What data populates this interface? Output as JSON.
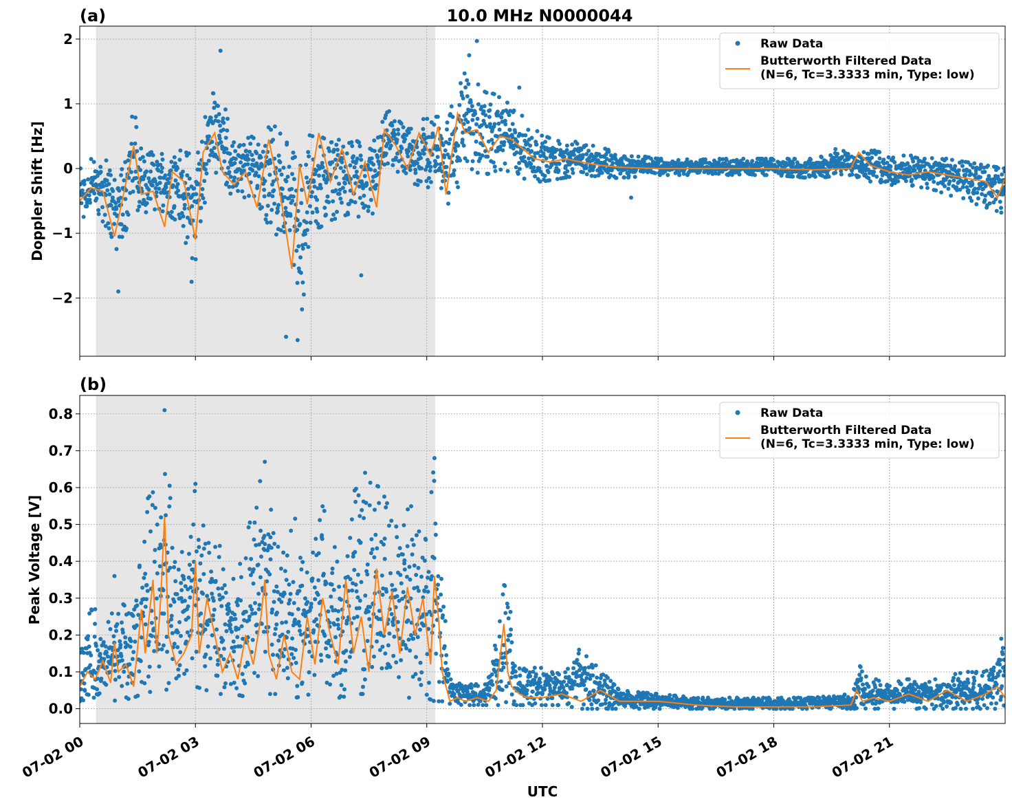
{
  "chart_data": [
    {
      "type": "scatter",
      "panel_label": "(a)",
      "title": "10.0 MHz N0000044",
      "xlabel": "",
      "ylabel": "Doppler Shift [Hz]",
      "xlim": [
        "2024-07-02T00:00",
        "2024-07-02T24:00"
      ],
      "ylim": [
        -2.9,
        2.2
      ],
      "yticks": [
        -2,
        -1,
        0,
        1,
        2
      ],
      "ytick_labels": [
        "−2",
        "−1",
        "0",
        "1",
        "2"
      ],
      "grid": true,
      "legend": "top-right",
      "shaded_region": {
        "start_hour": 0.42,
        "end_hour": 9.22,
        "color": "#e6e6e6"
      },
      "series": [
        {
          "name": "Raw Data",
          "kind": "scatter",
          "color": "#1f77b4",
          "band_hours": [
            0,
            0.5,
            1,
            1.4,
            1.7,
            2,
            2.5,
            3,
            3.3,
            3.6,
            4,
            4.5,
            5,
            5.5,
            5.7,
            6,
            6.5,
            7,
            7.5,
            8,
            8.5,
            9,
            9.3,
            9.6,
            10,
            10.5,
            11,
            11.5,
            12,
            13,
            14,
            15,
            16,
            17,
            18,
            19,
            20,
            20.5,
            21,
            22,
            23,
            24
          ],
          "band_low": [
            -0.9,
            -0.7,
            -1.3,
            -0.6,
            -0.8,
            -0.6,
            -0.8,
            -1.5,
            -0.3,
            0.0,
            -0.5,
            -0.4,
            -1.0,
            -1.1,
            -2.5,
            -1.0,
            -0.8,
            -0.7,
            -0.9,
            0.1,
            -0.2,
            -0.3,
            -0.2,
            -0.6,
            0.0,
            -0.1,
            0.0,
            -0.2,
            -0.2,
            -0.1,
            -0.15,
            -0.1,
            -0.1,
            -0.1,
            -0.1,
            -0.15,
            -0.1,
            -0.2,
            -0.25,
            -0.3,
            -0.5,
            -0.7
          ],
          "band_high": [
            0.1,
            0.2,
            0.0,
            0.9,
            0.2,
            0.3,
            0.3,
            0.2,
            0.9,
            1.4,
            0.4,
            0.5,
            0.7,
            0.3,
            0.0,
            0.6,
            0.4,
            0.5,
            0.3,
            0.9,
            0.6,
            0.8,
            0.8,
            0.9,
            1.5,
            1.2,
            1.1,
            0.8,
            0.5,
            0.4,
            0.25,
            0.15,
            0.15,
            0.15,
            0.15,
            0.15,
            0.3,
            0.3,
            0.2,
            0.2,
            0.1,
            0.0
          ],
          "outliers": [
            {
              "x_hour": 3.65,
              "y": 1.82
            },
            {
              "x_hour": 5.65,
              "y": -2.65
            },
            {
              "x_hour": 5.35,
              "y": -2.6
            },
            {
              "x_hour": 10.3,
              "y": 1.97
            },
            {
              "x_hour": 10.1,
              "y": 1.75
            },
            {
              "x_hour": 1.0,
              "y": -1.9
            },
            {
              "x_hour": 2.9,
              "y": -1.75
            },
            {
              "x_hour": 7.3,
              "y": -1.65
            },
            {
              "x_hour": 11.4,
              "y": 1.25
            },
            {
              "x_hour": 14.3,
              "y": -0.45
            },
            {
              "x_hour": 19.6,
              "y": 0.3
            }
          ]
        },
        {
          "name": "Butterworth Filtered Data\n(N=6, Tc=3.3333 min, Type: low)",
          "kind": "line",
          "color": "#ff7f0e",
          "x_hour": [
            0,
            0.3,
            0.6,
            0.9,
            1.1,
            1.4,
            1.6,
            1.9,
            2.2,
            2.4,
            2.7,
            3.0,
            3.2,
            3.5,
            3.7,
            4.0,
            4.3,
            4.6,
            4.9,
            5.2,
            5.5,
            5.7,
            5.9,
            6.2,
            6.5,
            6.8,
            7.1,
            7.4,
            7.7,
            7.9,
            8.2,
            8.5,
            8.8,
            9.1,
            9.3,
            9.5,
            9.8,
            10.0,
            10.3,
            10.6,
            10.9,
            11.2,
            11.5,
            11.8,
            12.2,
            12.6,
            13.0,
            13.5,
            14.0,
            15.0,
            16.0,
            17.0,
            18.0,
            19.0,
            20.0,
            20.2,
            20.5,
            21.0,
            21.5,
            22.0,
            22.5,
            23.0,
            23.5,
            23.8,
            24.0
          ],
          "y": [
            -0.5,
            -0.3,
            -0.35,
            -1.05,
            -0.5,
            0.35,
            -0.4,
            -0.35,
            -0.9,
            -0.05,
            -0.2,
            -1.1,
            0.25,
            0.55,
            -0.05,
            -0.25,
            -0.05,
            -0.6,
            0.45,
            -0.4,
            -1.55,
            0.05,
            -0.55,
            0.55,
            -0.2,
            0.3,
            -0.4,
            0.1,
            -0.6,
            0.6,
            0.35,
            0.0,
            0.55,
            0.2,
            0.65,
            -0.4,
            0.85,
            0.55,
            0.6,
            0.25,
            0.5,
            0.45,
            0.3,
            0.15,
            0.1,
            0.15,
            0.1,
            0.05,
            0.02,
            0.0,
            0.0,
            0.0,
            0.0,
            -0.02,
            0.0,
            0.25,
            0.05,
            -0.05,
            -0.1,
            -0.05,
            -0.1,
            -0.15,
            -0.2,
            -0.45,
            -0.15
          ]
        }
      ]
    },
    {
      "type": "scatter",
      "panel_label": "(b)",
      "title": "",
      "xlabel": "UTC",
      "ylabel": "Peak Voltage [V]",
      "xlim": [
        "2024-07-02T00:00",
        "2024-07-02T24:00"
      ],
      "ylim": [
        -0.04,
        0.85
      ],
      "yticks": [
        0.0,
        0.1,
        0.2,
        0.3,
        0.4,
        0.5,
        0.6,
        0.7,
        0.8
      ],
      "ytick_labels": [
        "0.0",
        "0.1",
        "0.2",
        "0.3",
        "0.4",
        "0.5",
        "0.6",
        "0.7",
        "0.8"
      ],
      "xticks_hour": [
        0,
        3,
        6,
        9,
        12,
        15,
        18,
        21
      ],
      "xtick_labels": [
        "07-02 00",
        "07-02 03",
        "07-02 06",
        "07-02 09",
        "07-02 12",
        "07-02 15",
        "07-02 18",
        "07-02 21"
      ],
      "grid": true,
      "legend": "top-right",
      "shaded_region": {
        "start_hour": 0.42,
        "end_hour": 9.22,
        "color": "#e6e6e6"
      },
      "series": [
        {
          "name": "Raw Data",
          "kind": "scatter",
          "color": "#1f77b4",
          "band_hours": [
            0,
            0.3,
            0.6,
            1.0,
            1.4,
            1.6,
            2.0,
            2.2,
            2.5,
            3.0,
            3.3,
            3.6,
            4.0,
            4.4,
            4.8,
            5.2,
            5.6,
            6.0,
            6.3,
            6.8,
            7.0,
            7.4,
            7.8,
            8.2,
            8.6,
            9.0,
            9.2,
            9.4,
            9.6,
            10.0,
            10.5,
            10.9,
            11.1,
            11.3,
            12.0,
            12.5,
            13.0,
            14.0,
            15.0,
            16.0,
            17.0,
            18.0,
            19.0,
            20.0,
            20.2,
            20.5,
            21.0,
            22.0,
            23.0,
            23.5,
            24.0
          ],
          "band_low": [
            0.02,
            0.03,
            0.03,
            0.02,
            0.03,
            0.04,
            0.05,
            0.05,
            0.06,
            0.06,
            0.05,
            0.04,
            0.04,
            0.03,
            0.04,
            0.04,
            0.03,
            0.04,
            0.03,
            0.03,
            0.04,
            0.04,
            0.03,
            0.03,
            0.03,
            0.03,
            0.02,
            0.02,
            0.01,
            0.01,
            0.01,
            0.01,
            0.02,
            0.01,
            0.01,
            0.01,
            0.0,
            0.0,
            0.0,
            0.0,
            0.0,
            0.0,
            0.0,
            0.0,
            0.0,
            0.0,
            0.0,
            0.0,
            0.0,
            0.0,
            0.0
          ],
          "band_high": [
            0.2,
            0.27,
            0.2,
            0.3,
            0.25,
            0.55,
            0.6,
            0.8,
            0.35,
            0.6,
            0.45,
            0.45,
            0.35,
            0.5,
            0.67,
            0.4,
            0.52,
            0.4,
            0.55,
            0.4,
            0.58,
            0.62,
            0.6,
            0.5,
            0.58,
            0.45,
            0.68,
            0.35,
            0.08,
            0.08,
            0.06,
            0.25,
            0.41,
            0.12,
            0.11,
            0.1,
            0.16,
            0.05,
            0.04,
            0.03,
            0.03,
            0.03,
            0.03,
            0.04,
            0.12,
            0.08,
            0.08,
            0.08,
            0.1,
            0.1,
            0.19
          ],
          "outliers": [
            {
              "x_hour": 2.2,
              "y": 0.81
            },
            {
              "x_hour": 4.8,
              "y": 0.67
            },
            {
              "x_hour": 9.2,
              "y": 0.68
            },
            {
              "x_hour": 7.4,
              "y": 0.64
            },
            {
              "x_hour": 3.0,
              "y": 0.61
            },
            {
              "x_hour": 0.4,
              "y": 0.27
            },
            {
              "x_hour": 0.9,
              "y": 0.36
            },
            {
              "x_hour": 12.95,
              "y": 0.16
            },
            {
              "x_hour": 23.9,
              "y": 0.19
            }
          ]
        },
        {
          "name": "Butterworth Filtered Data\n(N=6, Tc=3.3333 min, Type: low)",
          "kind": "line",
          "color": "#ff7f0e",
          "x_hour": [
            0,
            0.2,
            0.4,
            0.6,
            0.8,
            0.9,
            1.0,
            1.2,
            1.4,
            1.6,
            1.7,
            1.9,
            2.0,
            2.1,
            2.2,
            2.3,
            2.5,
            2.7,
            2.9,
            3.0,
            3.1,
            3.3,
            3.5,
            3.7,
            3.9,
            4.1,
            4.3,
            4.5,
            4.7,
            4.8,
            4.9,
            5.1,
            5.3,
            5.5,
            5.7,
            5.9,
            6.1,
            6.3,
            6.5,
            6.7,
            6.9,
            7.1,
            7.3,
            7.5,
            7.7,
            7.9,
            8.1,
            8.3,
            8.5,
            8.7,
            8.9,
            9.1,
            9.2,
            9.3,
            9.4,
            9.6,
            9.8,
            10.0,
            10.3,
            10.6,
            10.8,
            11.0,
            11.1,
            11.2,
            11.4,
            11.6,
            12.0,
            12.5,
            13.0,
            13.5,
            14.0,
            15.0,
            16.0,
            17.0,
            18.0,
            19.0,
            20.0,
            20.15,
            20.3,
            20.6,
            21.0,
            21.5,
            22.0,
            22.5,
            23.0,
            23.5,
            23.8,
            24.0
          ],
          "y": [
            0.06,
            0.1,
            0.08,
            0.13,
            0.07,
            0.18,
            0.1,
            0.12,
            0.06,
            0.27,
            0.15,
            0.35,
            0.15,
            0.3,
            0.52,
            0.2,
            0.12,
            0.15,
            0.2,
            0.4,
            0.15,
            0.3,
            0.2,
            0.1,
            0.15,
            0.08,
            0.2,
            0.12,
            0.25,
            0.35,
            0.15,
            0.08,
            0.2,
            0.1,
            0.08,
            0.25,
            0.12,
            0.3,
            0.2,
            0.12,
            0.35,
            0.15,
            0.25,
            0.1,
            0.38,
            0.2,
            0.32,
            0.15,
            0.33,
            0.2,
            0.3,
            0.12,
            0.36,
            0.25,
            0.1,
            0.02,
            0.03,
            0.02,
            0.03,
            0.02,
            0.05,
            0.23,
            0.1,
            0.06,
            0.04,
            0.03,
            0.03,
            0.04,
            0.02,
            0.05,
            0.02,
            0.02,
            0.01,
            0.005,
            0.005,
            0.005,
            0.01,
            0.05,
            0.02,
            0.03,
            0.02,
            0.04,
            0.02,
            0.05,
            0.02,
            0.04,
            0.06,
            0.03
          ]
        }
      ]
    }
  ]
}
